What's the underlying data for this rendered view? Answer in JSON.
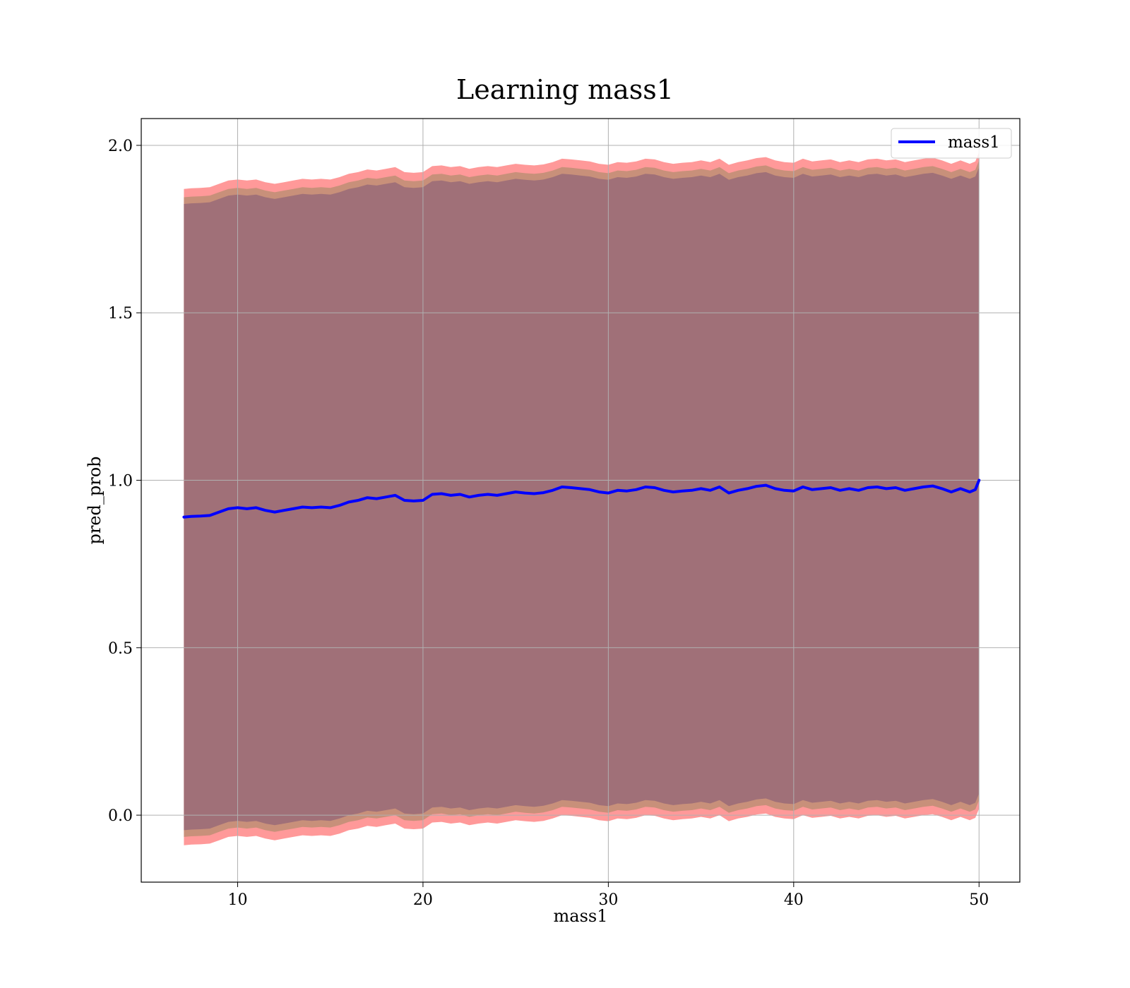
{
  "chart_data": {
    "type": "line",
    "title": "Learning mass1",
    "xlabel": "mass1",
    "ylabel": "pred_prob",
    "xlim": [
      4.8,
      52.2
    ],
    "ylim": [
      -0.2,
      2.08
    ],
    "xticks": [
      10,
      20,
      30,
      40,
      50
    ],
    "yticks": [
      0.0,
      0.5,
      1.0,
      1.5,
      2.0
    ],
    "xtick_labels": [
      "10",
      "20",
      "30",
      "40",
      "50"
    ],
    "ytick_labels": [
      "0.0",
      "0.5",
      "1.0",
      "1.5",
      "2.0"
    ],
    "grid": true,
    "legend_position": "upper right",
    "colors": {
      "line": "#0000ff",
      "band_outer": "#ff9999",
      "band_mid": "#c8907a",
      "band_inner": "#a07078",
      "grid": "#b0b0b0"
    },
    "series": [
      {
        "name": "mass1",
        "x": [
          7.1,
          7.5,
          8.0,
          8.5,
          9.0,
          9.5,
          10.0,
          10.5,
          11.0,
          11.5,
          12.0,
          12.5,
          13.0,
          13.5,
          14.0,
          14.5,
          15.0,
          15.5,
          16.0,
          16.5,
          17.0,
          17.5,
          18.0,
          18.5,
          19.0,
          19.5,
          20.0,
          20.5,
          21.0,
          21.5,
          22.0,
          22.5,
          23.0,
          23.5,
          24.0,
          24.5,
          25.0,
          25.5,
          26.0,
          26.5,
          27.0,
          27.5,
          28.0,
          28.5,
          29.0,
          29.5,
          30.0,
          30.5,
          31.0,
          31.5,
          32.0,
          32.5,
          33.0,
          33.5,
          34.0,
          34.5,
          35.0,
          35.5,
          36.0,
          36.5,
          37.0,
          37.5,
          38.0,
          38.5,
          39.0,
          39.5,
          40.0,
          40.5,
          41.0,
          41.5,
          42.0,
          42.5,
          43.0,
          43.5,
          44.0,
          44.5,
          45.0,
          45.5,
          46.0,
          46.5,
          47.0,
          47.5,
          48.0,
          48.5,
          49.0,
          49.5,
          49.8,
          50.0
        ],
        "y": [
          0.89,
          0.892,
          0.893,
          0.895,
          0.905,
          0.915,
          0.918,
          0.915,
          0.918,
          0.91,
          0.905,
          0.91,
          0.915,
          0.92,
          0.918,
          0.92,
          0.918,
          0.925,
          0.935,
          0.94,
          0.948,
          0.945,
          0.95,
          0.955,
          0.94,
          0.938,
          0.94,
          0.958,
          0.96,
          0.955,
          0.958,
          0.95,
          0.955,
          0.958,
          0.955,
          0.96,
          0.965,
          0.962,
          0.96,
          0.963,
          0.97,
          0.98,
          0.978,
          0.975,
          0.972,
          0.965,
          0.962,
          0.97,
          0.968,
          0.972,
          0.98,
          0.978,
          0.97,
          0.965,
          0.968,
          0.97,
          0.975,
          0.97,
          0.98,
          0.962,
          0.97,
          0.975,
          0.982,
          0.985,
          0.975,
          0.97,
          0.968,
          0.98,
          0.972,
          0.975,
          0.978,
          0.97,
          0.975,
          0.97,
          0.978,
          0.98,
          0.975,
          0.978,
          0.97,
          0.975,
          0.98,
          0.983,
          0.975,
          0.965,
          0.975,
          0.965,
          0.972,
          1.0
        ]
      }
    ],
    "bands": [
      {
        "lower_offset": -0.98,
        "upper_offset": 0.98
      },
      {
        "lower_offset": -0.955,
        "upper_offset": 0.955
      },
      {
        "lower_offset": -0.935,
        "upper_offset": 0.935
      }
    ]
  }
}
